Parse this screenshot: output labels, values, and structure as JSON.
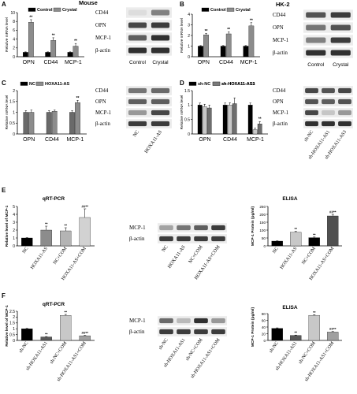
{
  "figure": {
    "panel_A": {
      "letter": "A",
      "species": "Mouse",
      "chart_data": {
        "type": "bar",
        "categories": [
          "OPN",
          "CD44",
          "MCP-1"
        ],
        "series": [
          {
            "name": "Control",
            "values": [
              1,
              1,
              1
            ],
            "errors": [
              0.1,
              0.1,
              0.1
            ]
          },
          {
            "name": "Crystal",
            "values": [
              7.8,
              3.7,
              2.4
            ],
            "errors": [
              0.6,
              0.6,
              0.6
            ]
          }
        ],
        "ylabel": "Relative mRNA level",
        "ylim": [
          0,
          10
        ],
        "yticks": [
          0,
          2,
          4,
          6,
          8,
          10
        ],
        "sig": [
          "**",
          "**",
          "**"
        ]
      },
      "blot": {
        "rows": [
          "CD44",
          "OPN",
          "MCP-1",
          "β-actin"
        ],
        "lanes": [
          "Control",
          "Crystal"
        ]
      }
    },
    "panel_B": {
      "letter": "B",
      "cell_line": "HK-2",
      "chart_data": {
        "type": "bar",
        "categories": [
          "OPN",
          "CD44",
          "MCP-1"
        ],
        "series": [
          {
            "name": "Control",
            "values": [
              1,
              1,
              1
            ],
            "errors": [
              0.05,
              0.05,
              0.05
            ]
          },
          {
            "name": "Crystal",
            "values": [
              2.05,
              2.15,
              2.9
            ],
            "errors": [
              0.15,
              0.2,
              0.3
            ]
          }
        ],
        "ylabel": "Relative mRNA level",
        "ylim": [
          0,
          4
        ],
        "yticks": [
          0,
          1,
          2,
          3,
          4
        ],
        "sig": [
          "**",
          "**",
          "**"
        ]
      },
      "blot": {
        "rows": [
          "CD44",
          "OPN",
          "MCP-1",
          "β-actin"
        ],
        "lanes": [
          "Control",
          "Crystal"
        ]
      }
    },
    "panel_C": {
      "letter": "C",
      "chart_data": {
        "type": "bar",
        "categories": [
          "OPN",
          "CD44",
          "MCP-1"
        ],
        "series": [
          {
            "name": "NC",
            "values": [
              1,
              1,
              1
            ],
            "errors": [
              0.08,
              0.08,
              0.08
            ]
          },
          {
            "name": "HOXA11-AS",
            "values": [
              1.0,
              1.05,
              1.45
            ],
            "errors": [
              0.1,
              0.05,
              0.1
            ]
          }
        ],
        "ylabel": "Relative mRNA level",
        "ylim": [
          0,
          2
        ],
        "yticks": [
          0,
          0.5,
          1,
          1.5,
          2
        ],
        "sig": [
          "",
          "",
          "**"
        ]
      },
      "blot": {
        "rows": [
          "CD44",
          "OPN",
          "MCP-1",
          "β-actin"
        ],
        "lanes": [
          "NC",
          "HOXA11-AS"
        ]
      }
    },
    "panel_D": {
      "letter": "D",
      "chart_data": {
        "type": "bar",
        "categories": [
          "OPN",
          "CD44",
          "MCP-1"
        ],
        "series": [
          {
            "name": "sh-NC",
            "values": [
              1,
              1,
              1
            ],
            "errors": [
              0.07,
              0.07,
              0.07
            ]
          },
          {
            "name": "sh-HOXA11-AS1",
            "values": [
              0.95,
              1.0,
              0.15
            ],
            "errors": [
              0.08,
              0.08,
              0.05
            ]
          },
          {
            "name": "sh-HOXA11-AS3",
            "values": [
              0.9,
              1.05,
              0.35
            ],
            "errors": [
              0.1,
              0.2,
              0.08
            ]
          }
        ],
        "ylabel": "Relative mRNA level",
        "ylim": [
          0,
          1.5
        ],
        "yticks": [
          0,
          0.5,
          1,
          1.5
        ],
        "sig": [
          "",
          "",
          "**"
        ]
      },
      "blot": {
        "rows": [
          "CD44",
          "OPN",
          "MCP-1",
          "β-actin"
        ],
        "lanes": [
          "sh-NC",
          "sh-HOXA11-AS1",
          "sh-HOXA11-AS3"
        ]
      }
    },
    "panel_E": {
      "letter": "E",
      "qpcr": {
        "title": "qRT-PCR",
        "chart_data": {
          "type": "bar",
          "categories": [
            "NC",
            "HOXA11-AS",
            "NC+COM",
            "HOXA11-AS+COM"
          ],
          "values": [
            1.0,
            2.0,
            1.9,
            3.6
          ],
          "errors": [
            0.05,
            0.5,
            0.4,
            1.1
          ],
          "colors": [
            "#000000",
            "#8c8c8c",
            "#b4b4b4",
            "#d2d2d2"
          ],
          "ylabel": "Relative level of MCP-1",
          "ylim": [
            0,
            5
          ],
          "yticks": [
            0,
            1,
            2,
            3,
            4,
            5
          ],
          "sig": [
            "",
            "**",
            "**",
            "##**"
          ]
        }
      },
      "blot": {
        "rows": [
          "MCP-1",
          "β-actin"
        ],
        "lanes": [
          "NC",
          "HOXA11-AS",
          "NC+COM",
          "HOXA11-AS+COM"
        ]
      },
      "elisa": {
        "title": "ELISA",
        "chart_data": {
          "type": "bar",
          "categories": [
            "NC",
            "HOXA11-AS",
            "NC+COM",
            "HOXA11-AS+COM"
          ],
          "values": [
            30,
            87,
            52,
            190
          ],
          "errors": [
            2,
            5,
            4,
            10
          ],
          "colors": [
            "#000000",
            "#c8c8c8",
            "#000000",
            "#505050"
          ],
          "ylabel": "MCP-1 Protein (pg/ml)",
          "ylim": [
            0,
            250
          ],
          "yticks": [
            0,
            50,
            100,
            150,
            200,
            250
          ],
          "sig": [
            "",
            "**",
            "**",
            "##**"
          ]
        }
      }
    },
    "panel_F": {
      "letter": "F",
      "qpcr": {
        "title": "qRT-PCR",
        "chart_data": {
          "type": "bar",
          "categories": [
            "sh-NC",
            "sh-HOXA11-AS1",
            "sh-NC+COM",
            "sh-HOXA11-AS1+COM"
          ],
          "values": [
            1.0,
            0.3,
            2.15,
            0.4
          ],
          "errors": [
            0.03,
            0.03,
            0.08,
            0.04
          ],
          "colors": [
            "#000000",
            "#5a5a5a",
            "#c8c8c8",
            "#a0a0a0"
          ],
          "ylabel": "Relative level of MCP-1",
          "ylim": [
            0,
            2.5
          ],
          "yticks": [
            0,
            0.5,
            1.0,
            1.5,
            2.0,
            2.5
          ],
          "sig": [
            "",
            "**",
            "**",
            "##**"
          ]
        }
      },
      "blot": {
        "rows": [
          "MCP-1",
          "β-actin"
        ],
        "lanes": [
          "sh-NC",
          "sh-HOXA11-AS1",
          "sh-NC+COM",
          "sh-HOXA11-AS1+COM"
        ]
      },
      "elisa": {
        "title": "ELISA",
        "chart_data": {
          "type": "bar",
          "categories": [
            "sh-NC",
            "sh-HOXA11-AS1",
            "sh-NC+COM",
            "sh-HOXA11-AS1+COM"
          ],
          "values": [
            36,
            15,
            75,
            25
          ],
          "errors": [
            1.5,
            1,
            2,
            1.5
          ],
          "colors": [
            "#000000",
            "#5a5a5a",
            "#c8c8c8",
            "#a0a0a0"
          ],
          "ylabel": "MCP-1 Protein (pg/ml)",
          "ylim": [
            0,
            80
          ],
          "yticks": [
            0,
            20,
            40,
            60,
            80
          ],
          "sig": [
            "",
            "**",
            "**",
            "##**"
          ]
        }
      }
    }
  }
}
